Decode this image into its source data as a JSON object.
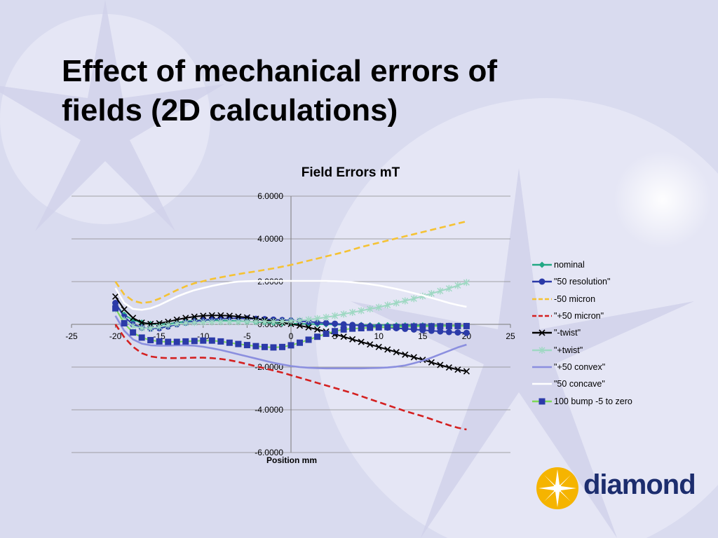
{
  "slide": {
    "title_line1": "Effect of mechanical errors of",
    "title_line2": "fields (2D calculations)"
  },
  "logo": {
    "text": "diamond",
    "icon": "sunburst-icon"
  },
  "colors": {
    "background": "#d9dbef",
    "logo_text": "#1c2d6e",
    "logo_sun": "#f5b400"
  },
  "chart_data": {
    "type": "line",
    "title": "Field Errors mT",
    "xlabel": "Position mm",
    "ylabel": "",
    "xlim": [
      -25,
      25
    ],
    "ylim": [
      -6,
      6
    ],
    "x_ticks": [
      "-25",
      "-20",
      "-15",
      "-10",
      "-5",
      "0",
      "5",
      "10",
      "15",
      "20",
      "25"
    ],
    "y_ticks": [
      "6.0000",
      "4.0000",
      "2.0000",
      "0.0000",
      "-2.0000",
      "-4.0000",
      "-6.0000"
    ],
    "grid": "horizontal",
    "legend_position": "right",
    "x": [
      -20,
      -19,
      -18,
      -17,
      -16,
      -15,
      -14,
      -13,
      -12,
      -11,
      -10,
      -9,
      -8,
      -7,
      -6,
      -5,
      -4,
      -3,
      -2,
      -1,
      0,
      1,
      2,
      3,
      4,
      5,
      6,
      7,
      8,
      9,
      10,
      11,
      12,
      13,
      14,
      15,
      16,
      17,
      18,
      19,
      20
    ],
    "series": [
      {
        "name": "nominal",
        "color": "#22a884",
        "style": "solid",
        "marker": "diamond",
        "values": [
          0.95,
          0.45,
          0.2,
          0.08,
          0.02,
          0.0,
          0.02,
          0.08,
          0.14,
          0.18,
          0.2,
          0.2,
          0.19,
          0.17,
          0.15,
          0.13,
          0.11,
          0.09,
          0.07,
          0.05,
          0.04,
          0.03,
          0.02,
          0.01,
          0.0,
          -0.01,
          -0.02,
          -0.03,
          -0.03,
          -0.04,
          -0.04,
          -0.04,
          -0.05,
          -0.05,
          -0.05,
          -0.05,
          -0.06,
          -0.06,
          -0.06,
          -0.07,
          -0.07
        ]
      },
      {
        "name": "\"50 resolution\"",
        "color": "#2b3aa8",
        "style": "solid",
        "marker": "circle",
        "values": [
          1.0,
          0.35,
          0.0,
          -0.15,
          -0.2,
          -0.18,
          -0.1,
          0.0,
          0.08,
          0.14,
          0.2,
          0.24,
          0.27,
          0.28,
          0.28,
          0.27,
          0.26,
          0.24,
          0.22,
          0.2,
          0.18,
          0.15,
          0.12,
          0.09,
          0.06,
          0.03,
          0.0,
          -0.03,
          -0.06,
          -0.09,
          -0.12,
          -0.15,
          -0.18,
          -0.21,
          -0.24,
          -0.27,
          -0.3,
          -0.33,
          -0.36,
          -0.38,
          -0.4
        ]
      },
      {
        "name": "-50 micron",
        "color": "#f5c233",
        "style": "dashed",
        "marker": "none",
        "values": [
          2.0,
          1.4,
          1.1,
          1.0,
          1.05,
          1.2,
          1.4,
          1.6,
          1.78,
          1.92,
          2.02,
          2.12,
          2.2,
          2.28,
          2.35,
          2.42,
          2.48,
          2.55,
          2.62,
          2.7,
          2.78,
          2.88,
          2.98,
          3.08,
          3.18,
          3.28,
          3.38,
          3.5,
          3.62,
          3.72,
          3.82,
          3.92,
          4.02,
          4.12,
          4.22,
          4.32,
          4.42,
          4.52,
          4.62,
          4.72,
          4.82
        ]
      },
      {
        "name": "\"+50 micron\"",
        "color": "#d42020",
        "style": "dashed",
        "marker": "none",
        "values": [
          0.0,
          -0.6,
          -1.05,
          -1.35,
          -1.5,
          -1.56,
          -1.58,
          -1.58,
          -1.57,
          -1.56,
          -1.56,
          -1.58,
          -1.62,
          -1.68,
          -1.76,
          -1.86,
          -1.96,
          -2.06,
          -2.16,
          -2.26,
          -2.38,
          -2.5,
          -2.62,
          -2.74,
          -2.86,
          -2.98,
          -3.1,
          -3.22,
          -3.36,
          -3.5,
          -3.64,
          -3.78,
          -3.92,
          -4.06,
          -4.18,
          -4.3,
          -4.44,
          -4.58,
          -4.72,
          -4.84,
          -4.92
        ]
      },
      {
        "name": "\"-twist\"",
        "color": "#000000",
        "style": "solid",
        "marker": "x",
        "values": [
          1.3,
          0.7,
          0.3,
          0.08,
          0.02,
          0.05,
          0.12,
          0.22,
          0.3,
          0.36,
          0.4,
          0.42,
          0.42,
          0.4,
          0.36,
          0.32,
          0.26,
          0.2,
          0.14,
          0.08,
          0.02,
          -0.06,
          -0.14,
          -0.24,
          -0.34,
          -0.46,
          -0.58,
          -0.7,
          -0.82,
          -0.94,
          -1.06,
          -1.18,
          -1.3,
          -1.42,
          -1.54,
          -1.66,
          -1.78,
          -1.9,
          -2.02,
          -2.12,
          -2.2
        ]
      },
      {
        "name": "\"+twist\"",
        "color": "#9fd8c3",
        "style": "solid",
        "marker": "star",
        "values": [
          0.7,
          0.2,
          -0.08,
          -0.18,
          -0.18,
          -0.12,
          -0.04,
          0.02,
          0.06,
          0.08,
          0.1,
          0.11,
          0.12,
          0.12,
          0.12,
          0.12,
          0.12,
          0.12,
          0.12,
          0.13,
          0.15,
          0.18,
          0.22,
          0.27,
          0.33,
          0.4,
          0.48,
          0.56,
          0.64,
          0.72,
          0.8,
          0.9,
          1.0,
          1.1,
          1.2,
          1.32,
          1.44,
          1.56,
          1.68,
          1.82,
          1.96
        ]
      },
      {
        "name": "\"+50 convex\"",
        "color": "#8b8fdf",
        "style": "solid",
        "marker": "none",
        "values": [
          0.4,
          -0.3,
          -0.7,
          -0.9,
          -0.98,
          -1.0,
          -1.0,
          -0.98,
          -0.98,
          -1.0,
          -1.05,
          -1.12,
          -1.2,
          -1.3,
          -1.4,
          -1.5,
          -1.6,
          -1.7,
          -1.8,
          -1.88,
          -1.95,
          -2.0,
          -2.03,
          -2.05,
          -2.06,
          -2.06,
          -2.06,
          -2.06,
          -2.06,
          -2.05,
          -2.04,
          -2.02,
          -1.98,
          -1.92,
          -1.82,
          -1.7,
          -1.56,
          -1.4,
          -1.24,
          -1.08,
          -0.95
        ]
      },
      {
        "name": "\"50 concave\"",
        "color": "#ffffff",
        "style": "solid",
        "marker": "none",
        "values": [
          1.7,
          1.0,
          0.72,
          0.68,
          0.75,
          0.9,
          1.1,
          1.3,
          1.46,
          1.6,
          1.7,
          1.8,
          1.88,
          1.95,
          2.0,
          2.02,
          2.03,
          2.03,
          2.03,
          2.03,
          2.03,
          2.03,
          2.03,
          2.03,
          2.03,
          2.02,
          2.0,
          1.97,
          1.93,
          1.88,
          1.82,
          1.74,
          1.66,
          1.56,
          1.46,
          1.36,
          1.24,
          1.12,
          1.0,
          0.9,
          0.82
        ]
      },
      {
        "name": "100 bump -5 to zero",
        "color": "#2b3aa8",
        "line_color": "#7ed957",
        "style": "solid",
        "marker": "square",
        "values": [
          0.75,
          0.05,
          -0.38,
          -0.62,
          -0.74,
          -0.8,
          -0.82,
          -0.82,
          -0.8,
          -0.78,
          -0.76,
          -0.76,
          -0.8,
          -0.86,
          -0.92,
          -0.97,
          -1.02,
          -1.06,
          -1.08,
          -1.06,
          -0.98,
          -0.86,
          -0.72,
          -0.58,
          -0.44,
          -0.32,
          -0.24,
          -0.2,
          -0.18,
          -0.16,
          -0.14,
          -0.13,
          -0.12,
          -0.11,
          -0.1,
          -0.1,
          -0.09,
          -0.09,
          -0.08,
          -0.08,
          -0.08
        ]
      }
    ]
  }
}
